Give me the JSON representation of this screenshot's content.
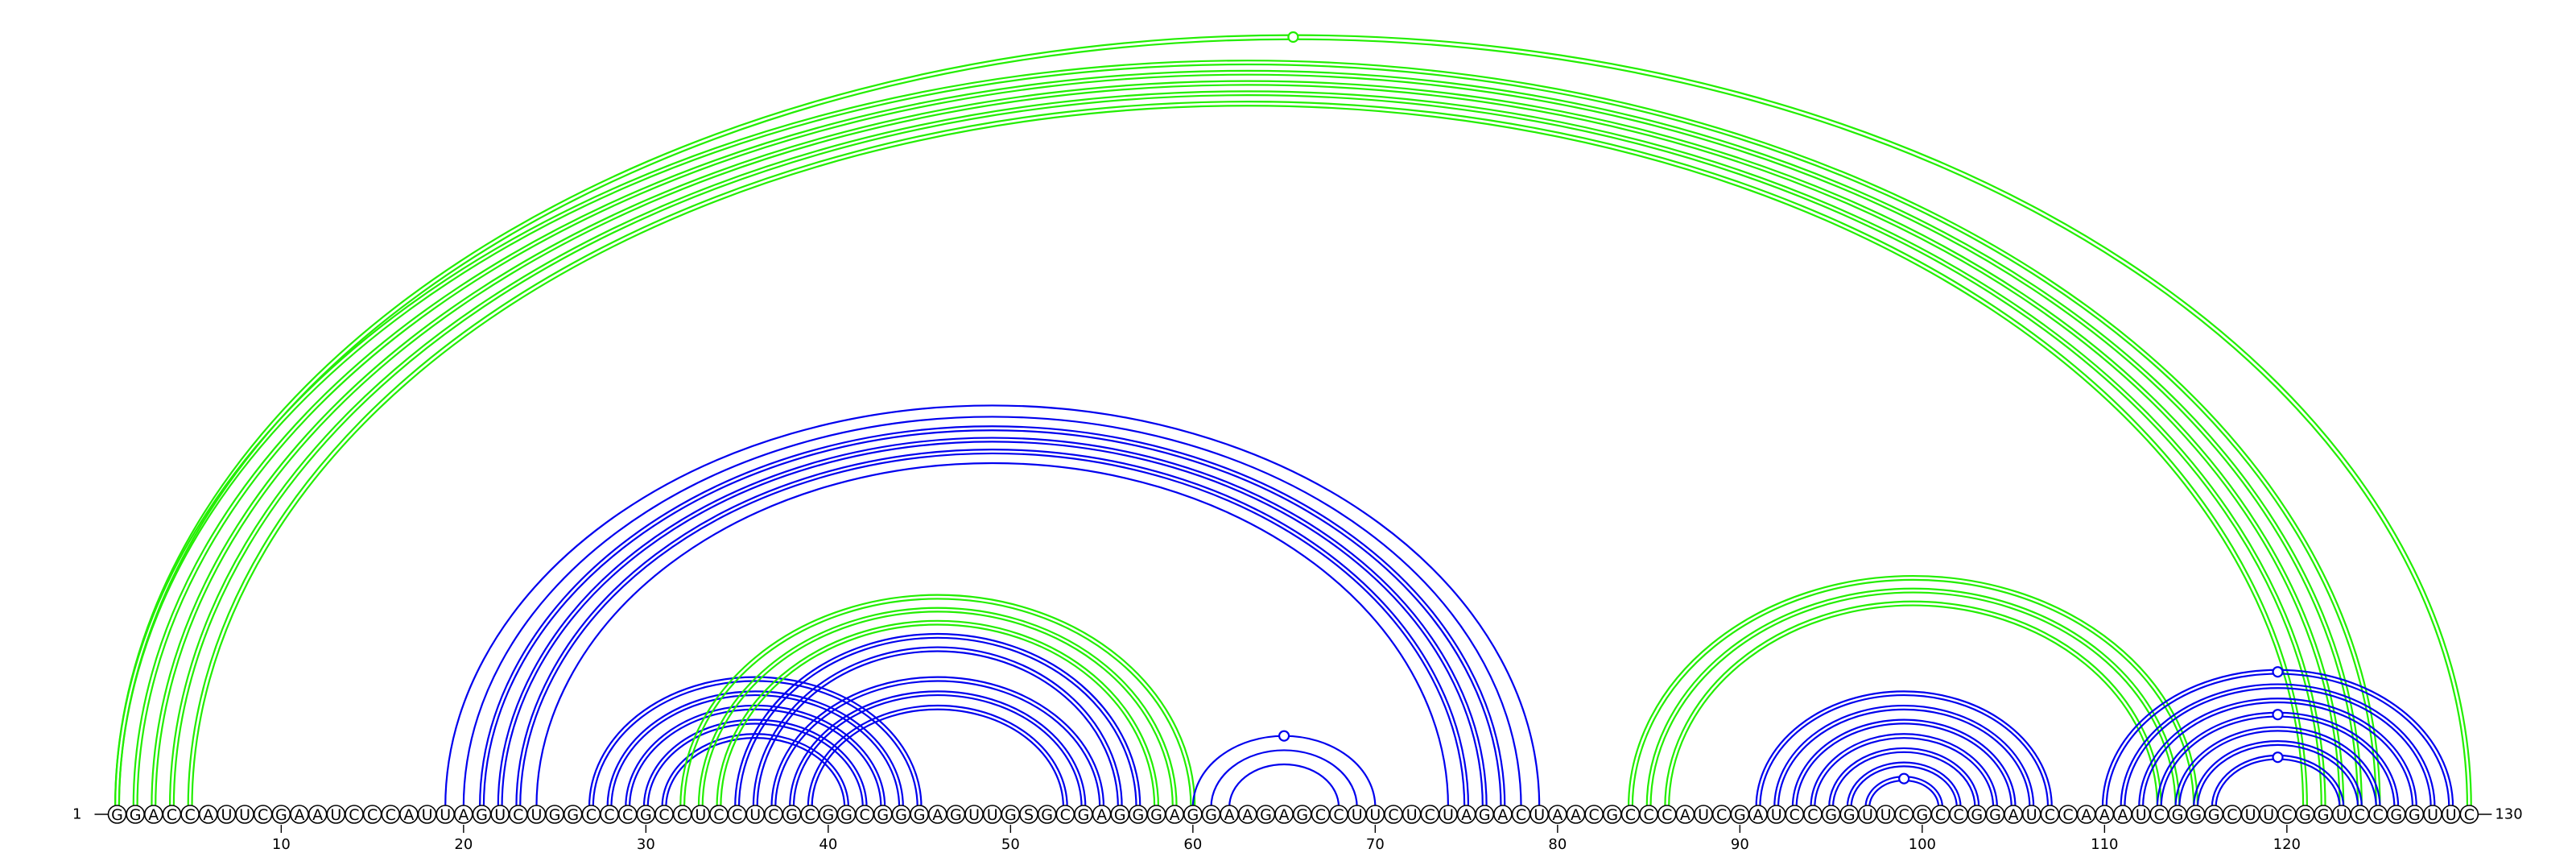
{
  "chart_data": {
    "type": "arc-diagram",
    "sequence": "GGACCAUUCGAAUCCCAUUAGUCUGGCCCGCCUCCUCGCGGCGGGAGUUGSGCGAGGGAGGAAGAGCCUUCUCUAGACUAACGCCCAUCGAUCCGGUUCGCCGGAUCCAAAUCGGGCUUCGGUCCGGUUC",
    "start_label": "1",
    "end_label": "130",
    "ticks": [
      {
        "pos": 10,
        "label": "10"
      },
      {
        "pos": 20,
        "label": "20"
      },
      {
        "pos": 30,
        "label": "30"
      },
      {
        "pos": 40,
        "label": "40"
      },
      {
        "pos": 50,
        "label": "50"
      },
      {
        "pos": 60,
        "label": "60"
      },
      {
        "pos": 70,
        "label": "70"
      },
      {
        "pos": 80,
        "label": "80"
      },
      {
        "pos": 90,
        "label": "90"
      },
      {
        "pos": 100,
        "label": "100"
      },
      {
        "pos": 110,
        "label": "110"
      },
      {
        "pos": 120,
        "label": "120"
      }
    ],
    "colors": {
      "blue": "#0000ee",
      "green": "#22ee00"
    },
    "arcs": [
      {
        "from": 1,
        "to": 125,
        "color": "green",
        "double": true
      },
      {
        "from": 2,
        "to": 124,
        "color": "green",
        "double": true
      },
      {
        "from": 3,
        "to": 123,
        "color": "green",
        "double": true
      },
      {
        "from": 4,
        "to": 122,
        "color": "green",
        "double": true
      },
      {
        "from": 5,
        "to": 121,
        "color": "green",
        "double": true
      },
      {
        "from": 1,
        "to": 130,
        "color": "green",
        "double": true,
        "marker": true
      },
      {
        "from": 19,
        "to": 79,
        "color": "blue",
        "double": false
      },
      {
        "from": 20,
        "to": 78,
        "color": "blue",
        "double": false
      },
      {
        "from": 21,
        "to": 77,
        "color": "blue",
        "double": true
      },
      {
        "from": 22,
        "to": 76,
        "color": "blue",
        "double": true
      },
      {
        "from": 23,
        "to": 75,
        "color": "blue",
        "double": true
      },
      {
        "from": 24,
        "to": 74,
        "color": "blue",
        "double": false
      },
      {
        "from": 27,
        "to": 45,
        "color": "blue",
        "double": true
      },
      {
        "from": 28,
        "to": 44,
        "color": "blue",
        "double": true
      },
      {
        "from": 29,
        "to": 43,
        "color": "blue",
        "double": true
      },
      {
        "from": 30,
        "to": 42,
        "color": "blue",
        "double": true
      },
      {
        "from": 31,
        "to": 41,
        "color": "blue",
        "double": true
      },
      {
        "from": 32,
        "to": 60,
        "color": "green",
        "double": true
      },
      {
        "from": 33,
        "to": 59,
        "color": "green",
        "double": true
      },
      {
        "from": 34,
        "to": 58,
        "color": "green",
        "double": true
      },
      {
        "from": 35,
        "to": 57,
        "color": "blue",
        "double": true
      },
      {
        "from": 36,
        "to": 56,
        "color": "blue",
        "double": true
      },
      {
        "from": 37,
        "to": 55,
        "color": "blue",
        "double": true
      },
      {
        "from": 38,
        "to": 54,
        "color": "blue",
        "double": true
      },
      {
        "from": 39,
        "to": 53,
        "color": "blue",
        "double": true
      },
      {
        "from": 60,
        "to": 70,
        "color": "blue",
        "double": false,
        "marker": true
      },
      {
        "from": 61,
        "to": 69,
        "color": "blue",
        "double": false
      },
      {
        "from": 62,
        "to": 68,
        "color": "blue",
        "double": false
      },
      {
        "from": 84,
        "to": 115,
        "color": "green",
        "double": true
      },
      {
        "from": 85,
        "to": 114,
        "color": "green",
        "double": true
      },
      {
        "from": 86,
        "to": 113,
        "color": "green",
        "double": true
      },
      {
        "from": 91,
        "to": 107,
        "color": "blue",
        "double": true
      },
      {
        "from": 92,
        "to": 106,
        "color": "blue",
        "double": true
      },
      {
        "from": 93,
        "to": 105,
        "color": "blue",
        "double": true
      },
      {
        "from": 94,
        "to": 104,
        "color": "blue",
        "double": true
      },
      {
        "from": 95,
        "to": 103,
        "color": "blue",
        "double": true
      },
      {
        "from": 96,
        "to": 102,
        "color": "blue",
        "double": true
      },
      {
        "from": 97,
        "to": 101,
        "color": "blue",
        "double": true,
        "marker": true
      },
      {
        "from": 110,
        "to": 129,
        "color": "blue",
        "double": true,
        "marker": true
      },
      {
        "from": 111,
        "to": 128,
        "color": "blue",
        "double": true
      },
      {
        "from": 112,
        "to": 127,
        "color": "blue",
        "double": true
      },
      {
        "from": 113,
        "to": 126,
        "color": "blue",
        "double": true,
        "marker": true
      },
      {
        "from": 114,
        "to": 125,
        "color": "blue",
        "double": true
      },
      {
        "from": 115,
        "to": 124,
        "color": "blue",
        "double": true
      },
      {
        "from": 116,
        "to": 123,
        "color": "blue",
        "double": true,
        "marker": true
      }
    ]
  }
}
